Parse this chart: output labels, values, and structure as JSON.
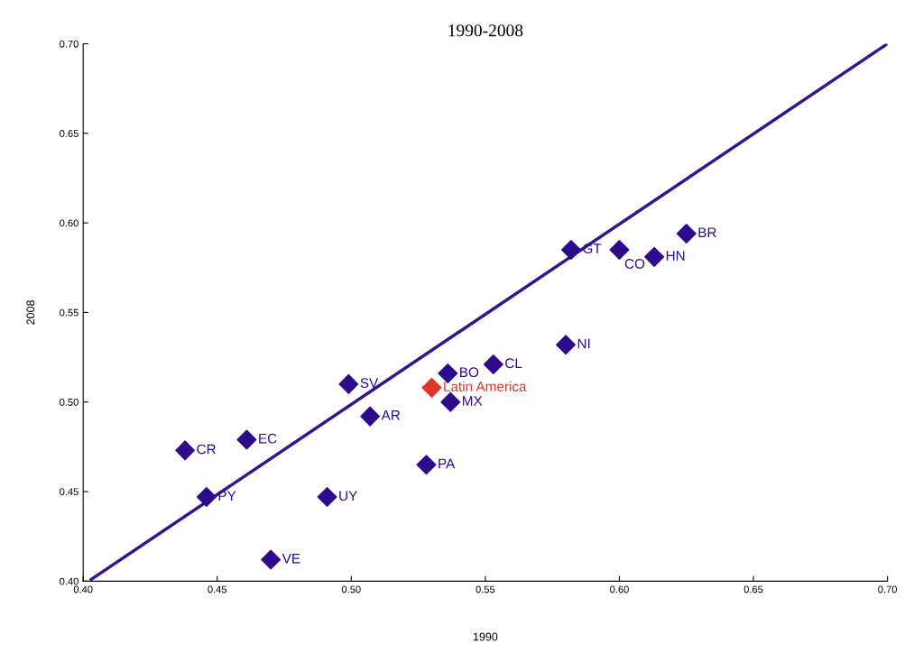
{
  "chart_data": {
    "type": "scatter",
    "title": "1990-2008",
    "xlabel": "1990",
    "ylabel": "2008",
    "xlim": [
      0.4,
      0.7
    ],
    "ylim": [
      0.4,
      0.7
    ],
    "xticks": [
      {
        "value": 0.4,
        "label": "0.40"
      },
      {
        "value": 0.45,
        "label": "0.45"
      },
      {
        "value": 0.5,
        "label": "0.50"
      },
      {
        "value": 0.55,
        "label": "0.55"
      },
      {
        "value": 0.6,
        "label": "0.60"
      },
      {
        "value": 0.65,
        "label": "0.65"
      },
      {
        "value": 0.7,
        "label": "0.70"
      }
    ],
    "yticks": [
      {
        "value": 0.4,
        "label": "0.40"
      },
      {
        "value": 0.45,
        "label": "0.45"
      },
      {
        "value": 0.5,
        "label": "0.50"
      },
      {
        "value": 0.55,
        "label": "0.55"
      },
      {
        "value": 0.6,
        "label": "0.60"
      },
      {
        "value": 0.65,
        "label": "0.65"
      },
      {
        "value": 0.7,
        "label": "0.70"
      }
    ],
    "grid": false,
    "legend": false,
    "marker": "diamond",
    "series": [
      {
        "type": "line",
        "color": "#34168c",
        "x": [
          0.403,
          0.7
        ],
        "values": [
          0.401,
          0.7
        ],
        "marker": "none"
      },
      {
        "name": "CR",
        "color": "#2e0a8c",
        "x": [
          0.438
        ],
        "values": [
          0.473
        ]
      },
      {
        "name": "EC",
        "color": "#2e0a8c",
        "x": [
          0.461
        ],
        "values": [
          0.479
        ]
      },
      {
        "name": "PY",
        "color": "#2e0a8c",
        "x": [
          0.446
        ],
        "values": [
          0.447
        ]
      },
      {
        "name": "VE",
        "color": "#2e0a8c",
        "x": [
          0.47
        ],
        "values": [
          0.412
        ]
      },
      {
        "name": "UY",
        "color": "#2e0a8c",
        "x": [
          0.491
        ],
        "values": [
          0.447
        ]
      },
      {
        "name": "SV",
        "color": "#2e0a8c",
        "x": [
          0.499
        ],
        "values": [
          0.51
        ]
      },
      {
        "name": "AR",
        "color": "#2e0a8c",
        "x": [
          0.507
        ],
        "values": [
          0.492
        ]
      },
      {
        "name": "PA",
        "color": "#2e0a8c",
        "x": [
          0.528
        ],
        "values": [
          0.465
        ]
      },
      {
        "name": "Latin America",
        "color": "#e0352b",
        "x": [
          0.53
        ],
        "values": [
          0.508
        ]
      },
      {
        "name": "BO",
        "color": "#2e0a8c",
        "x": [
          0.536
        ],
        "values": [
          0.516
        ]
      },
      {
        "name": "MX",
        "color": "#2e0a8c",
        "x": [
          0.537
        ],
        "values": [
          0.5
        ]
      },
      {
        "name": "CL",
        "color": "#2e0a8c",
        "x": [
          0.553
        ],
        "values": [
          0.521
        ]
      },
      {
        "name": "NI",
        "color": "#2e0a8c",
        "x": [
          0.58
        ],
        "values": [
          0.532
        ]
      },
      {
        "name": "GT",
        "color": "#2e0a8c",
        "x": [
          0.582
        ],
        "values": [
          0.585
        ]
      },
      {
        "name": "CO",
        "color": "#2e0a8c",
        "x": [
          0.6
        ],
        "values": [
          0.585
        ]
      },
      {
        "name": "HN",
        "color": "#2e0a8c",
        "x": [
          0.613
        ],
        "values": [
          0.581
        ]
      },
      {
        "name": "BR",
        "color": "#2e0a8c",
        "x": [
          0.625
        ],
        "values": [
          0.594
        ]
      }
    ]
  }
}
